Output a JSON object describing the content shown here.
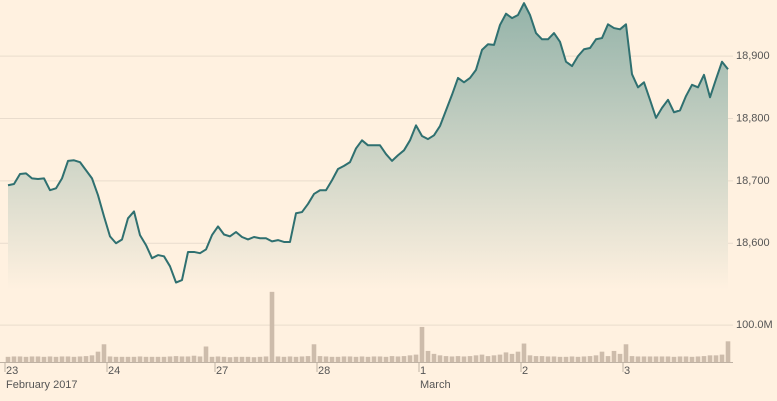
{
  "chart_data": {
    "type": "line",
    "categories": [
      "23",
      null,
      null,
      null,
      null,
      null,
      null,
      null,
      null,
      null,
      null,
      null,
      null,
      null,
      null,
      null,
      null,
      "24",
      null,
      null,
      null,
      null,
      null,
      null,
      null,
      null,
      null,
      null,
      null,
      null,
      null,
      null,
      null,
      null,
      null,
      "27",
      null,
      null,
      null,
      null,
      null,
      null,
      null,
      null,
      null,
      null,
      null,
      null,
      null,
      null,
      null,
      null,
      "28",
      null,
      null,
      null,
      null,
      null,
      null,
      null,
      null,
      null,
      null,
      null,
      null,
      null,
      null,
      null,
      null,
      "1",
      null,
      null,
      null,
      null,
      null,
      null,
      null,
      null,
      null,
      null,
      null,
      null,
      null,
      null,
      null,
      null,
      "2",
      null,
      null,
      null,
      null,
      null,
      null,
      null,
      null,
      null,
      null,
      null,
      null,
      null,
      null,
      null,
      null,
      "3",
      null,
      null,
      null,
      null,
      null,
      null,
      null,
      null,
      null,
      null,
      null,
      null,
      null,
      null,
      null,
      null,
      null
    ],
    "month_labels": [
      "February 2017",
      null,
      null,
      null,
      null,
      null,
      null,
      null,
      null,
      null,
      null,
      null,
      null,
      null,
      null,
      null,
      null,
      null,
      null,
      null,
      null,
      null,
      null,
      null,
      null,
      null,
      null,
      null,
      null,
      null,
      null,
      null,
      null,
      null,
      null,
      null,
      null,
      null,
      null,
      null,
      null,
      null,
      null,
      null,
      null,
      null,
      null,
      null,
      null,
      null,
      null,
      null,
      null,
      null,
      null,
      null,
      null,
      null,
      null,
      null,
      null,
      null,
      null,
      null,
      null,
      null,
      null,
      null,
      null,
      "March",
      null,
      null,
      null,
      null,
      null,
      null,
      null,
      null,
      null,
      null,
      null,
      null,
      null,
      null,
      null,
      null,
      null,
      null,
      null,
      null,
      null,
      null,
      null,
      null,
      null,
      null,
      null,
      null,
      null,
      null,
      null,
      null,
      null,
      null,
      null,
      null,
      null,
      null,
      null,
      null,
      null,
      null,
      null,
      null,
      null,
      null,
      null,
      null,
      null,
      null,
      null
    ],
    "series": [
      {
        "color": "#2f7070",
        "values": [
          18693,
          18695,
          18711,
          18712,
          18704,
          18703,
          18704,
          18685,
          18688,
          18704,
          18732,
          18733,
          18730,
          18717,
          18704,
          18677,
          18643,
          18611,
          18600,
          18606,
          18640,
          18651,
          18613,
          18597,
          18576,
          18581,
          18579,
          18563,
          18537,
          18541,
          18586,
          18586,
          18584,
          18590,
          18613,
          18627,
          18614,
          18611,
          18618,
          18610,
          18606,
          18610,
          18608,
          18608,
          18603,
          18605,
          18602,
          18602,
          18648,
          18650,
          18663,
          18679,
          18685,
          18685,
          18701,
          18719,
          18724,
          18730,
          18752,
          18765,
          18757,
          18757,
          18757,
          18743,
          18732,
          18741,
          18749,
          18765,
          18789,
          18772,
          18767,
          18773,
          18788,
          18813,
          18838,
          18865,
          18858,
          18865,
          18878,
          18910,
          18919,
          18918,
          18950,
          18968,
          18961,
          18966,
          18985,
          18966,
          18937,
          18927,
          18927,
          18937,
          18923,
          18891,
          18884,
          18900,
          18911,
          18913,
          18927,
          18929,
          18951,
          18945,
          18943,
          18951,
          18871,
          18850,
          18858,
          18830,
          18801,
          18817,
          18830,
          18810,
          18813,
          18836,
          18854,
          18850,
          18870,
          18834,
          18863,
          18891,
          18879
        ]
      },
      {
        "color": "#cdbcab",
        "axis": "y2",
        "values": [
          14,
          15,
          15,
          14,
          15,
          15,
          14,
          15,
          14,
          15,
          15,
          14,
          15,
          16,
          18,
          28,
          48,
          15,
          14,
          14,
          14,
          14,
          15,
          14,
          14,
          14,
          14,
          15,
          16,
          15,
          15,
          17,
          15,
          42,
          14,
          15,
          14,
          13,
          14,
          14,
          14,
          13,
          14,
          15,
          190,
          15,
          14,
          15,
          14,
          15,
          16,
          48,
          16,
          15,
          14,
          14,
          15,
          15,
          14,
          15,
          14,
          15,
          15,
          14,
          16,
          15,
          16,
          18,
          20,
          95,
          30,
          22,
          18,
          16,
          15,
          16,
          15,
          16,
          18,
          20,
          16,
          18,
          20,
          26,
          22,
          28,
          50,
          18,
          16,
          16,
          15,
          15,
          14,
          14,
          15,
          14,
          15,
          16,
          18,
          28,
          16,
          30,
          22,
          48,
          16,
          15,
          15,
          15,
          15,
          15,
          15,
          14,
          15,
          15,
          14,
          15,
          16,
          18,
          18,
          20,
          56
        ]
      }
    ],
    "ylim": [
      18525,
      18990
    ],
    "yticks": [
      {
        "value": 18600,
        "label": "18,600"
      },
      {
        "value": 18700,
        "label": "18,700"
      },
      {
        "value": 18800,
        "label": "18,800"
      },
      {
        "value": 18900,
        "label": "18,900"
      }
    ],
    "y2lim": [
      0,
      195
    ],
    "y2ticks": [
      {
        "value": 100,
        "label": "100.0M"
      }
    ],
    "grid": true
  }
}
